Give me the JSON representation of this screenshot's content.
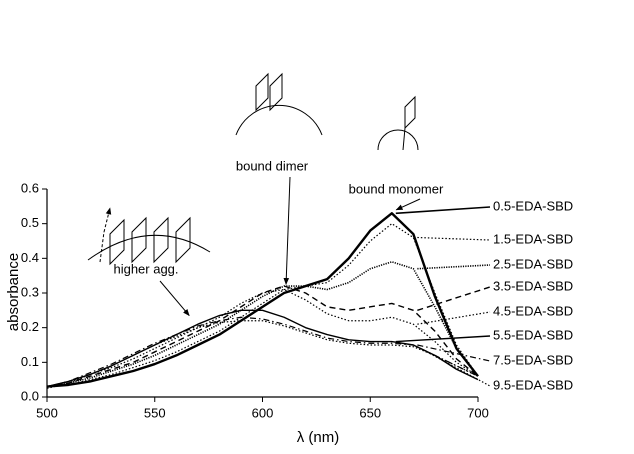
{
  "chart_data": {
    "type": "line",
    "x_label": "λ  (nm)",
    "y_label": "absorbance",
    "x": [
      500,
      510,
      520,
      530,
      540,
      550,
      560,
      570,
      580,
      590,
      600,
      610,
      620,
      630,
      640,
      650,
      660,
      670,
      680,
      690,
      700
    ],
    "xlim": [
      500,
      700
    ],
    "xticks": [
      500,
      550,
      600,
      650,
      700
    ],
    "ylim": [
      0,
      0.6
    ],
    "yticks": [
      {
        "value": 0,
        "label": "0.0"
      },
      0.1,
      0.2,
      0.3,
      0.4,
      0.5,
      0.6
    ],
    "series": [
      {
        "name": "0.5-EDA-SBD",
        "color": "#000000",
        "line_style": "solid-thick",
        "values": [
          0.03,
          0.035,
          0.045,
          0.06,
          0.075,
          0.095,
          0.12,
          0.15,
          0.18,
          0.22,
          0.26,
          0.3,
          0.32,
          0.34,
          0.4,
          0.48,
          0.53,
          0.47,
          0.29,
          0.14,
          0.06
        ]
      },
      {
        "name": "1.5-EDA-SBD",
        "color": "#000000",
        "line_style": "dotted",
        "values": [
          0.03,
          0.035,
          0.05,
          0.065,
          0.085,
          0.105,
          0.13,
          0.16,
          0.19,
          0.23,
          0.27,
          0.31,
          0.32,
          0.33,
          0.38,
          0.45,
          0.5,
          0.46,
          0.3,
          0.15,
          0.06
        ]
      },
      {
        "name": "2.5-EDA-SBD",
        "color": "#000000",
        "line_style": "dense-dotted",
        "values": [
          0.03,
          0.04,
          0.055,
          0.075,
          0.095,
          0.12,
          0.15,
          0.18,
          0.21,
          0.25,
          0.29,
          0.32,
          0.32,
          0.31,
          0.33,
          0.37,
          0.39,
          0.37,
          0.26,
          0.14,
          0.06
        ]
      },
      {
        "name": "3.5-EDA-SBD",
        "color": "#000000",
        "line_style": "dashed",
        "values": [
          0.03,
          0.04,
          0.06,
          0.08,
          0.1,
          0.13,
          0.16,
          0.19,
          0.22,
          0.26,
          0.3,
          0.32,
          0.3,
          0.26,
          0.25,
          0.26,
          0.27,
          0.25,
          0.19,
          0.11,
          0.06
        ]
      },
      {
        "name": "4.5-EDA-SBD",
        "color": "#000000",
        "line_style": "dotted",
        "values": [
          0.03,
          0.045,
          0.065,
          0.085,
          0.11,
          0.14,
          0.17,
          0.2,
          0.23,
          0.27,
          0.3,
          0.31,
          0.28,
          0.24,
          0.22,
          0.22,
          0.23,
          0.21,
          0.16,
          0.1,
          0.06
        ]
      },
      {
        "name": "5.5-EDA-SBD",
        "color": "#000000",
        "line_style": "solid",
        "values": [
          0.03,
          0.045,
          0.065,
          0.09,
          0.12,
          0.15,
          0.18,
          0.21,
          0.235,
          0.25,
          0.25,
          0.23,
          0.2,
          0.18,
          0.165,
          0.16,
          0.16,
          0.15,
          0.12,
          0.08,
          0.05
        ]
      },
      {
        "name": "7.5-EDA-SBD",
        "color": "#000000",
        "line_style": "dashdot",
        "values": [
          0.03,
          0.045,
          0.07,
          0.095,
          0.125,
          0.155,
          0.18,
          0.205,
          0.22,
          0.23,
          0.225,
          0.21,
          0.19,
          0.17,
          0.16,
          0.155,
          0.155,
          0.15,
          0.12,
          0.09,
          0.06
        ]
      },
      {
        "name": "9.5-EDA-SBD",
        "color": "#000000",
        "line_style": "dotted",
        "values": [
          0.025,
          0.04,
          0.065,
          0.09,
          0.12,
          0.15,
          0.175,
          0.2,
          0.215,
          0.22,
          0.22,
          0.205,
          0.185,
          0.165,
          0.155,
          0.15,
          0.15,
          0.145,
          0.12,
          0.09,
          0.06
        ]
      }
    ],
    "annotations": [
      "bound monomer",
      "bound dimer",
      "higher agg."
    ]
  }
}
